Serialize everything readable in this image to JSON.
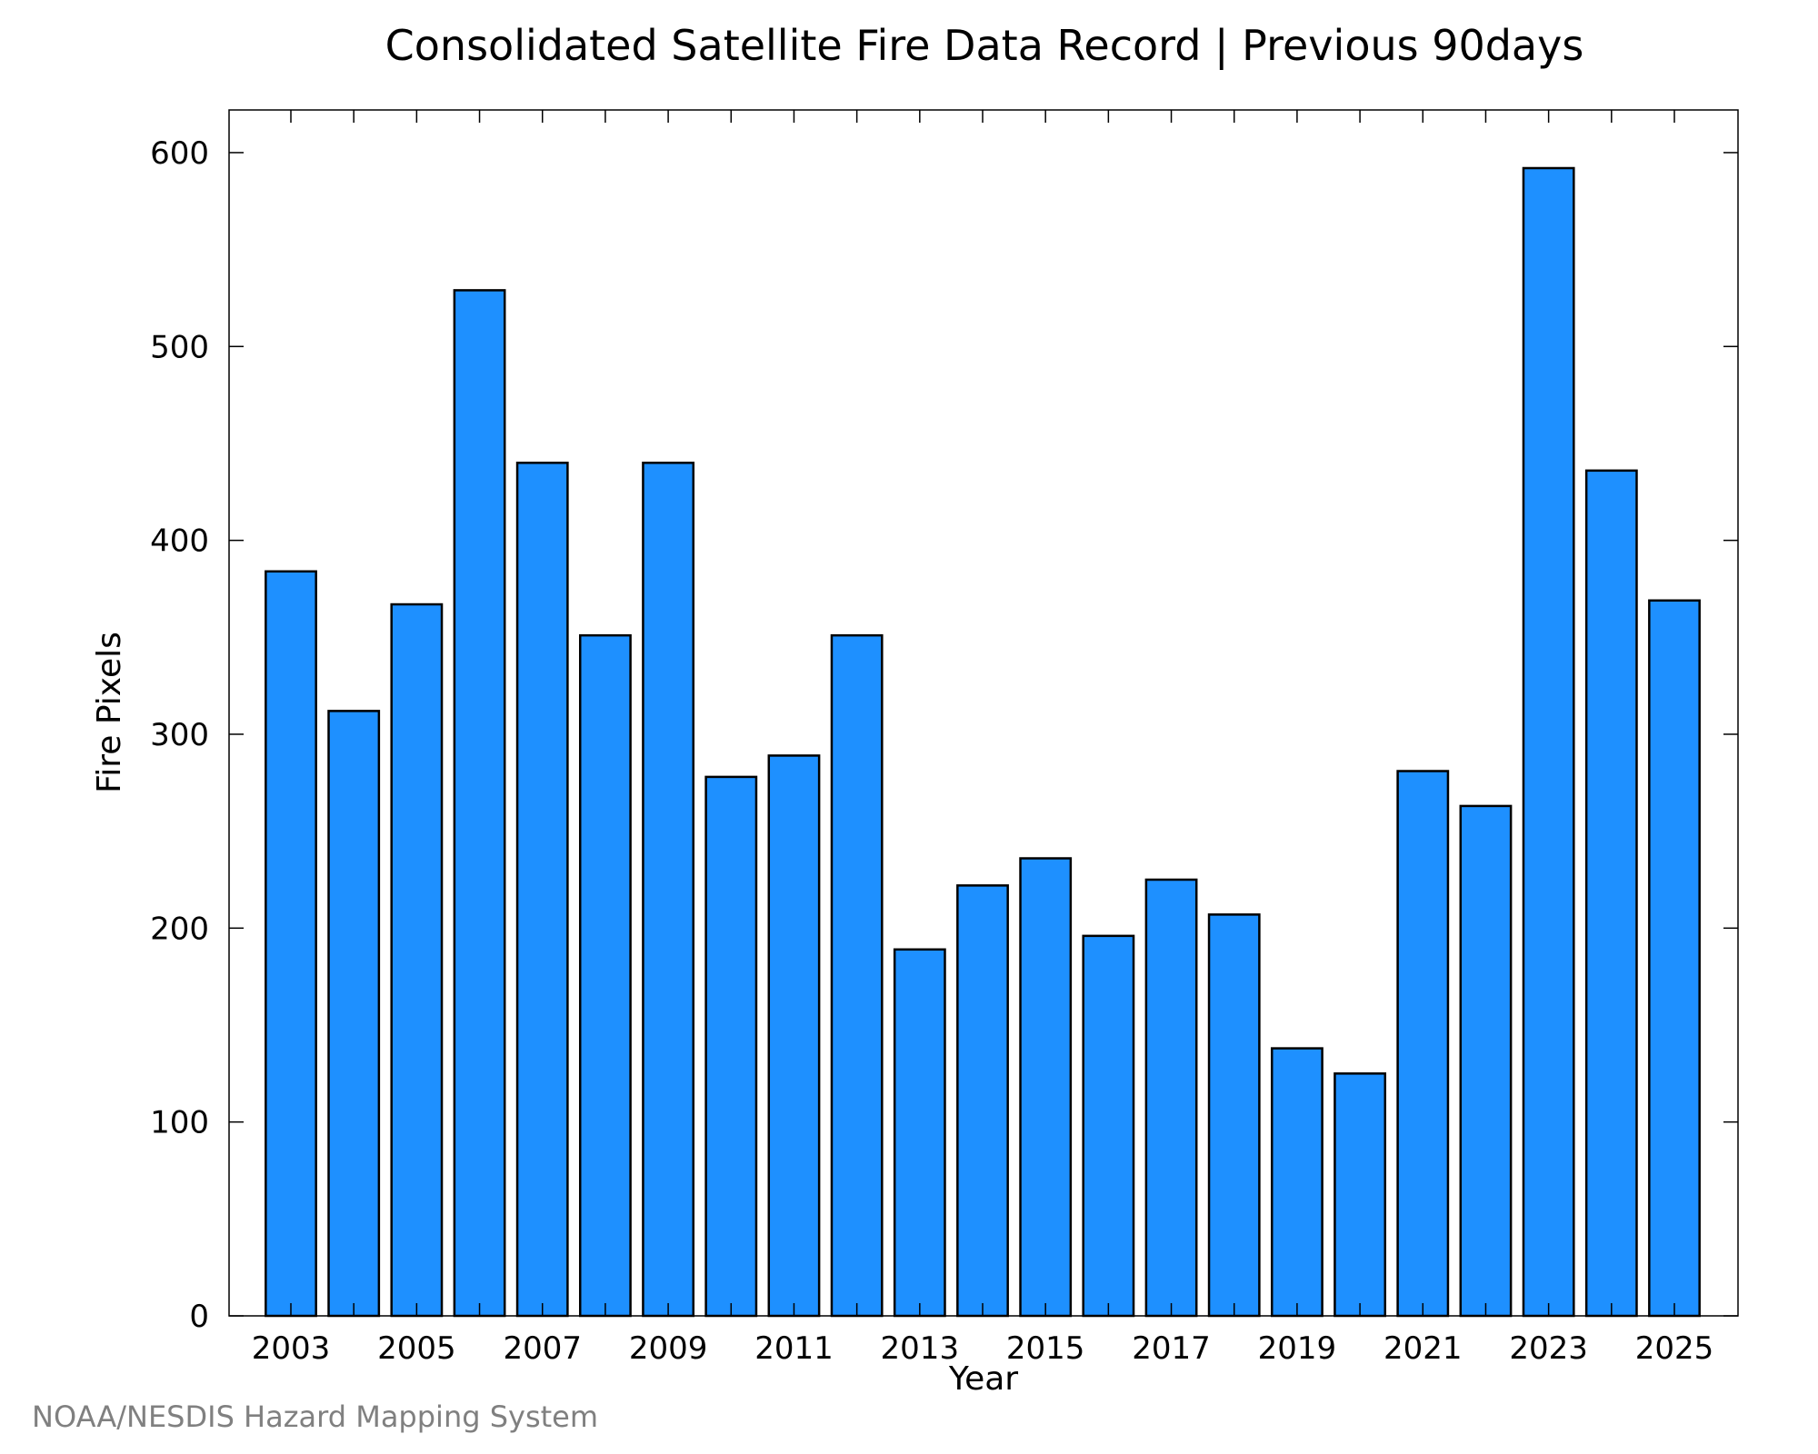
{
  "chart_data": {
    "type": "bar",
    "title": "Consolidated Satellite Fire Data Record | Previous 90days",
    "xlabel": "Year",
    "ylabel": "Fire Pixels",
    "categories": [
      2003,
      2004,
      2005,
      2006,
      2007,
      2008,
      2009,
      2010,
      2011,
      2012,
      2013,
      2014,
      2015,
      2016,
      2017,
      2018,
      2019,
      2020,
      2021,
      2022,
      2023,
      2024,
      2025
    ],
    "values": [
      384,
      312,
      367,
      529,
      440,
      351,
      440,
      278,
      289,
      351,
      189,
      222,
      236,
      196,
      225,
      207,
      138,
      125,
      281,
      263,
      592,
      436,
      369
    ],
    "x_tick_labels": [
      "2003",
      "2005",
      "2007",
      "2009",
      "2011",
      "2013",
      "2015",
      "2017",
      "2019",
      "2021",
      "2023",
      "2025"
    ],
    "y_tick_labels": [
      "0",
      "100",
      "200",
      "300",
      "400",
      "500",
      "600"
    ],
    "ylim": [
      0,
      622
    ],
    "grid": false,
    "legend": "none",
    "bar_color": "#1e90ff",
    "bar_edge_color": "#000000",
    "credit": "NOAA/NESDIS Hazard Mapping System"
  }
}
